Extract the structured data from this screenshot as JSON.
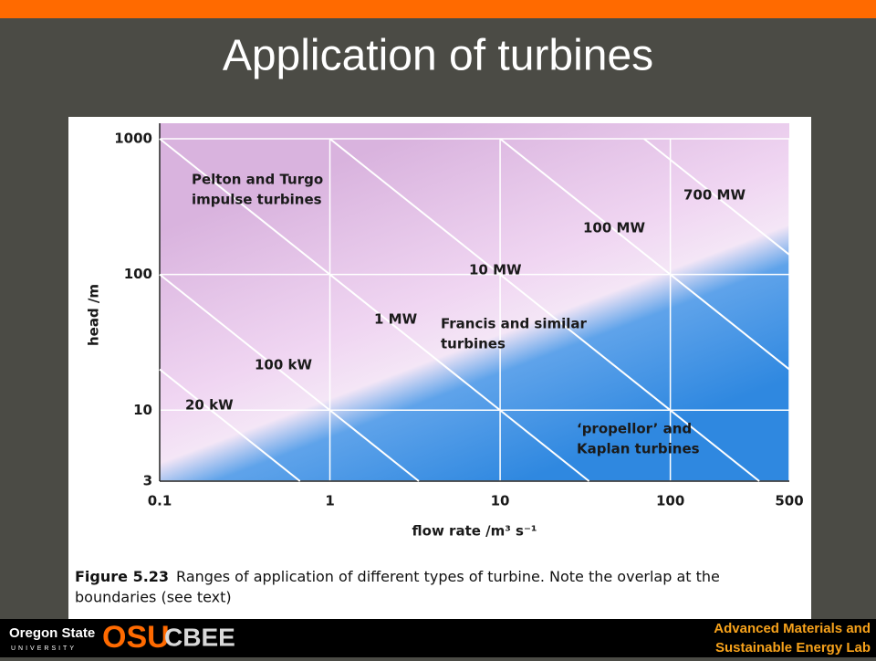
{
  "title": "Application of turbines",
  "footer": {
    "university": "Oregon State",
    "university_sub": "UNIVERSITY",
    "logo": "OSU",
    "department": "CBEE",
    "lab_lines": [
      "Advanced Materials and",
      "Sustainable Energy Lab"
    ]
  },
  "chart_data": {
    "type": "line",
    "log_x": true,
    "log_y": true,
    "grid": true,
    "x_label": "flow rate /m³ s⁻¹",
    "y_label": "head /m",
    "xlim": [
      0.1,
      500
    ],
    "ylim": [
      3,
      1000
    ],
    "xticks": [
      0.1,
      1,
      10,
      100,
      500
    ],
    "yticks": [
      3,
      10,
      100,
      1000
    ],
    "color": "#ffffff",
    "series": [
      {
        "name": "20 kW",
        "x": [
          0.1,
          0.667
        ],
        "values": [
          20,
          3
        ]
      },
      {
        "name": "100 kW",
        "x": [
          0.1,
          3.33
        ],
        "values": [
          100,
          3
        ]
      },
      {
        "name": "1 MW",
        "x": [
          0.1,
          33.3
        ],
        "values": [
          1000,
          3
        ]
      },
      {
        "name": "10 MW",
        "x": [
          1,
          333
        ],
        "values": [
          1000,
          3
        ]
      },
      {
        "name": "100 MW",
        "x": [
          10,
          500
        ],
        "values": [
          1000,
          20
        ]
      },
      {
        "name": "700 MW",
        "x": [
          70,
          500
        ],
        "values": [
          1000,
          140
        ]
      }
    ],
    "annotations": [
      {
        "lines": [
          "Pelton and Turgo",
          "impulse turbines"
        ]
      },
      {
        "lines": [
          "Francis and similar",
          "turbines"
        ]
      },
      {
        "lines": [
          "‘propellor’ and",
          "Kaplan turbines"
        ]
      }
    ],
    "caption_label": "Figure 5.23",
    "caption_lines": [
      "Ranges of application of different types of turbine. Note the overlap at the",
      "boundaries (see text)"
    ]
  }
}
